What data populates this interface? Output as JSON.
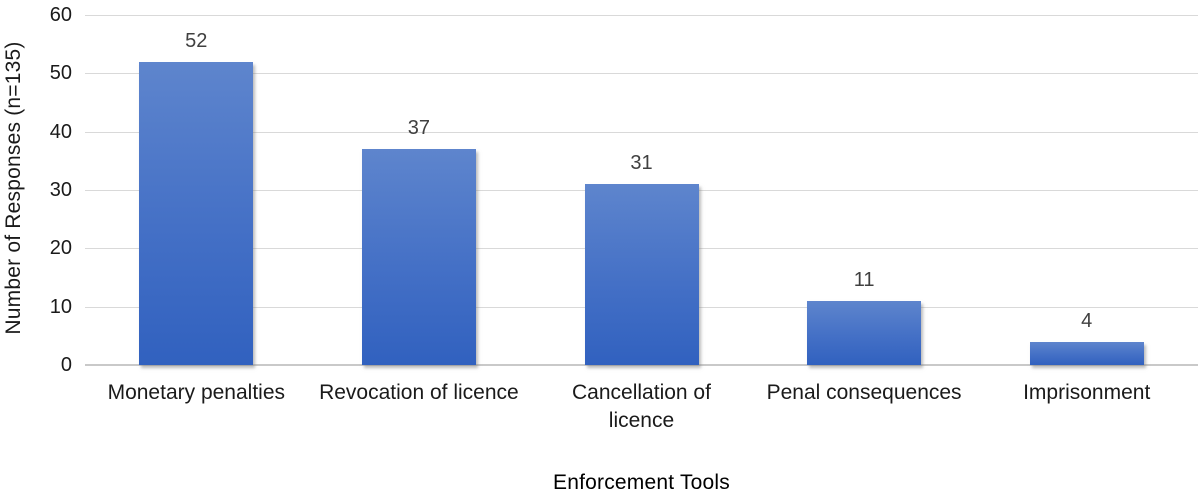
{
  "chart_data": {
    "type": "bar",
    "title": "",
    "categories": [
      "Monetary penalties",
      "Revocation of licence",
      "Cancellation of\nlicence",
      "Penal consequences",
      "Imprisonment"
    ],
    "values": [
      52,
      37,
      31,
      11,
      4
    ],
    "data_labels": [
      "52",
      "37",
      "31",
      "11",
      "4"
    ],
    "xlabel": "Enforcement Tools",
    "ylabel": "Number of Responses (n=135)",
    "ylim": [
      0,
      60
    ],
    "yticks": [
      0,
      10,
      20,
      30,
      40,
      50,
      60
    ],
    "grid": true,
    "legend_position": "none",
    "colors": {
      "bar_top": "#5e85cd",
      "bar_mid": "#4470c6",
      "bar_bottom": "#3161bf",
      "gridline": "#d9d9d9",
      "axis_line": "#c9c9c9",
      "data_label": "#404040",
      "tick_label": "#1a1a1a"
    }
  }
}
